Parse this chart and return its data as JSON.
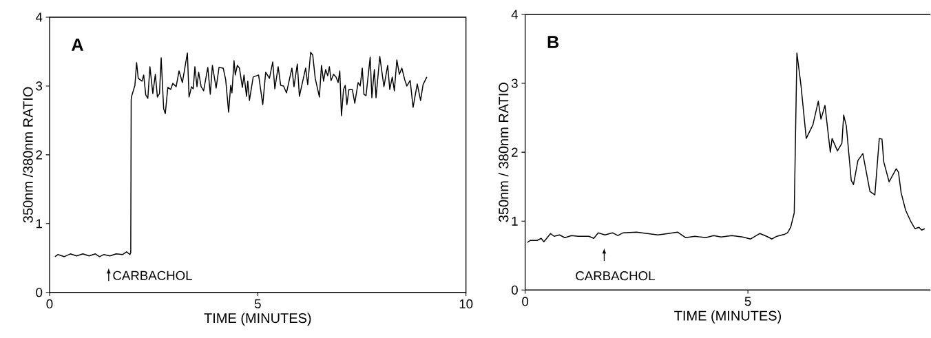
{
  "chart_data": [
    {
      "type": "line",
      "xlabel": "TIME (MINUTES)",
      "ylabel": "350nm /380nm RATIO",
      "color": "#000000",
      "annotations": [
        "A",
        "CARBACHOL"
      ],
      "xlim": [
        0,
        10
      ],
      "ylim": [
        0,
        4
      ],
      "xticks": [
        0,
        5,
        10
      ],
      "yticks": [
        0,
        1,
        2,
        3,
        4
      ],
      "x": [
        0.13,
        0.2,
        0.35,
        0.5,
        0.65,
        0.8,
        0.95,
        1.1,
        1.2,
        1.3,
        1.45,
        1.6,
        1.75,
        1.85,
        1.93,
        1.95,
        1.96,
        1.97,
        2.05,
        2.09,
        2.13,
        2.22,
        2.26,
        2.31,
        2.36,
        2.41,
        2.48,
        2.54,
        2.59,
        2.64,
        2.68,
        2.74,
        2.78,
        2.84,
        2.91,
        2.96,
        3.04,
        3.11,
        3.19,
        3.31,
        3.35,
        3.41,
        3.45,
        3.49,
        3.54,
        3.58,
        3.64,
        3.7,
        3.8,
        3.86,
        3.91,
        4.0,
        4.07,
        4.17,
        4.23,
        4.3,
        4.35,
        4.38,
        4.43,
        4.46,
        4.51,
        4.56,
        4.63,
        4.67,
        4.73,
        4.76,
        4.8,
        4.89,
        5.02,
        5.12,
        5.19,
        5.28,
        5.36,
        5.41,
        5.49,
        5.55,
        5.62,
        5.69,
        5.82,
        5.87,
        5.95,
        6.0,
        6.08,
        6.15,
        6.2,
        6.27,
        6.32,
        6.38,
        6.48,
        6.53,
        6.58,
        6.63,
        6.68,
        6.72,
        6.76,
        6.82,
        6.88,
        6.93,
        6.97,
        7.01,
        7.06,
        7.1,
        7.14,
        7.19,
        7.27,
        7.33,
        7.41,
        7.46,
        7.51,
        7.55,
        7.6,
        7.7,
        7.74,
        7.8,
        7.84,
        7.93,
        8.03,
        8.12,
        8.17,
        8.23,
        8.28,
        8.34,
        8.4,
        8.46,
        8.53,
        8.58,
        8.66,
        8.73,
        8.83,
        8.91,
        8.97,
        9.06
      ],
      "values": [
        0.52,
        0.55,
        0.52,
        0.56,
        0.53,
        0.56,
        0.53,
        0.56,
        0.52,
        0.55,
        0.53,
        0.56,
        0.55,
        0.59,
        0.55,
        0.58,
        2.8,
        2.85,
        3.01,
        3.34,
        3.11,
        3.07,
        3.16,
        2.87,
        2.82,
        3.28,
        2.89,
        3.17,
        2.84,
        2.89,
        3.41,
        2.67,
        2.6,
        2.98,
        2.95,
        3.04,
        2.99,
        3.22,
        3.05,
        3.48,
        2.84,
        2.99,
        2.96,
        3.28,
        2.99,
        3.2,
        2.99,
        2.93,
        3.27,
        2.88,
        3.3,
        2.97,
        3.27,
        3.26,
        3.09,
        2.62,
        3.01,
        2.9,
        3.37,
        3.16,
        3.3,
        3.26,
        2.98,
        3.16,
        2.85,
        3.07,
        2.79,
        3.13,
        3.16,
        2.73,
        3.2,
        3.11,
        3.35,
        2.96,
        3.28,
        3.01,
        3.0,
        2.9,
        3.26,
        2.99,
        3.32,
        2.85,
        3.07,
        3.26,
        3.02,
        3.49,
        3.45,
        3.11,
        2.84,
        3.3,
        3.07,
        3.24,
        3.15,
        3.28,
        3.08,
        3.17,
        3.13,
        3.05,
        3.22,
        2.57,
        2.95,
        3.01,
        2.73,
        2.95,
        2.95,
        2.75,
        3.05,
        3.0,
        3.26,
        2.88,
        2.86,
        3.42,
        2.83,
        3.24,
        2.83,
        3.43,
        2.99,
        3.3,
        2.95,
        3.13,
        2.93,
        3.38,
        3.17,
        3.26,
        3.09,
        3.0,
        3.08,
        2.69,
        3.03,
        2.79,
        3.02,
        3.13
      ]
    },
    {
      "type": "line",
      "xlabel": "TIME (MINUTES)",
      "ylabel": "350nm / 380nm RATIO",
      "color": "#000000",
      "annotations": [
        "B",
        "CARBACHOL"
      ],
      "xlim": [
        0,
        9.1
      ],
      "ylim": [
        0,
        4
      ],
      "xticks": [
        0,
        5
      ],
      "yticks": [
        0,
        1,
        2,
        3,
        4
      ],
      "x": [
        0.05,
        0.12,
        0.27,
        0.36,
        0.42,
        0.57,
        0.65,
        0.77,
        0.89,
        1.04,
        1.19,
        1.43,
        1.54,
        1.64,
        1.79,
        1.96,
        2.08,
        2.2,
        2.5,
        2.74,
        2.98,
        3.21,
        3.42,
        3.6,
        3.81,
        4.05,
        4.23,
        4.4,
        4.64,
        4.88,
        5.06,
        5.27,
        5.42,
        5.54,
        5.65,
        5.83,
        5.89,
        5.96,
        6.04,
        6.1,
        6.19,
        6.31,
        6.46,
        6.58,
        6.64,
        6.73,
        6.85,
        6.89,
        7.01,
        7.11,
        7.15,
        7.21,
        7.32,
        7.37,
        7.47,
        7.58,
        7.74,
        7.85,
        7.95,
        8.01,
        8.05,
        8.17,
        8.33,
        8.38,
        8.44,
        8.54,
        8.66,
        8.75,
        8.84,
        8.9,
        8.97
      ],
      "values": [
        0.69,
        0.72,
        0.72,
        0.75,
        0.7,
        0.82,
        0.78,
        0.8,
        0.76,
        0.79,
        0.78,
        0.78,
        0.75,
        0.83,
        0.8,
        0.83,
        0.79,
        0.83,
        0.84,
        0.82,
        0.8,
        0.82,
        0.84,
        0.76,
        0.78,
        0.76,
        0.79,
        0.77,
        0.79,
        0.77,
        0.74,
        0.82,
        0.78,
        0.74,
        0.78,
        0.81,
        0.83,
        0.91,
        1.12,
        3.44,
        2.98,
        2.2,
        2.4,
        2.74,
        2.48,
        2.68,
        2.0,
        2.2,
        2.02,
        2.13,
        2.54,
        2.38,
        1.59,
        1.53,
        1.88,
        1.98,
        1.43,
        1.38,
        2.2,
        2.19,
        1.86,
        1.57,
        1.76,
        1.71,
        1.41,
        1.16,
        0.99,
        0.89,
        0.91,
        0.87,
        0.89
      ]
    }
  ]
}
